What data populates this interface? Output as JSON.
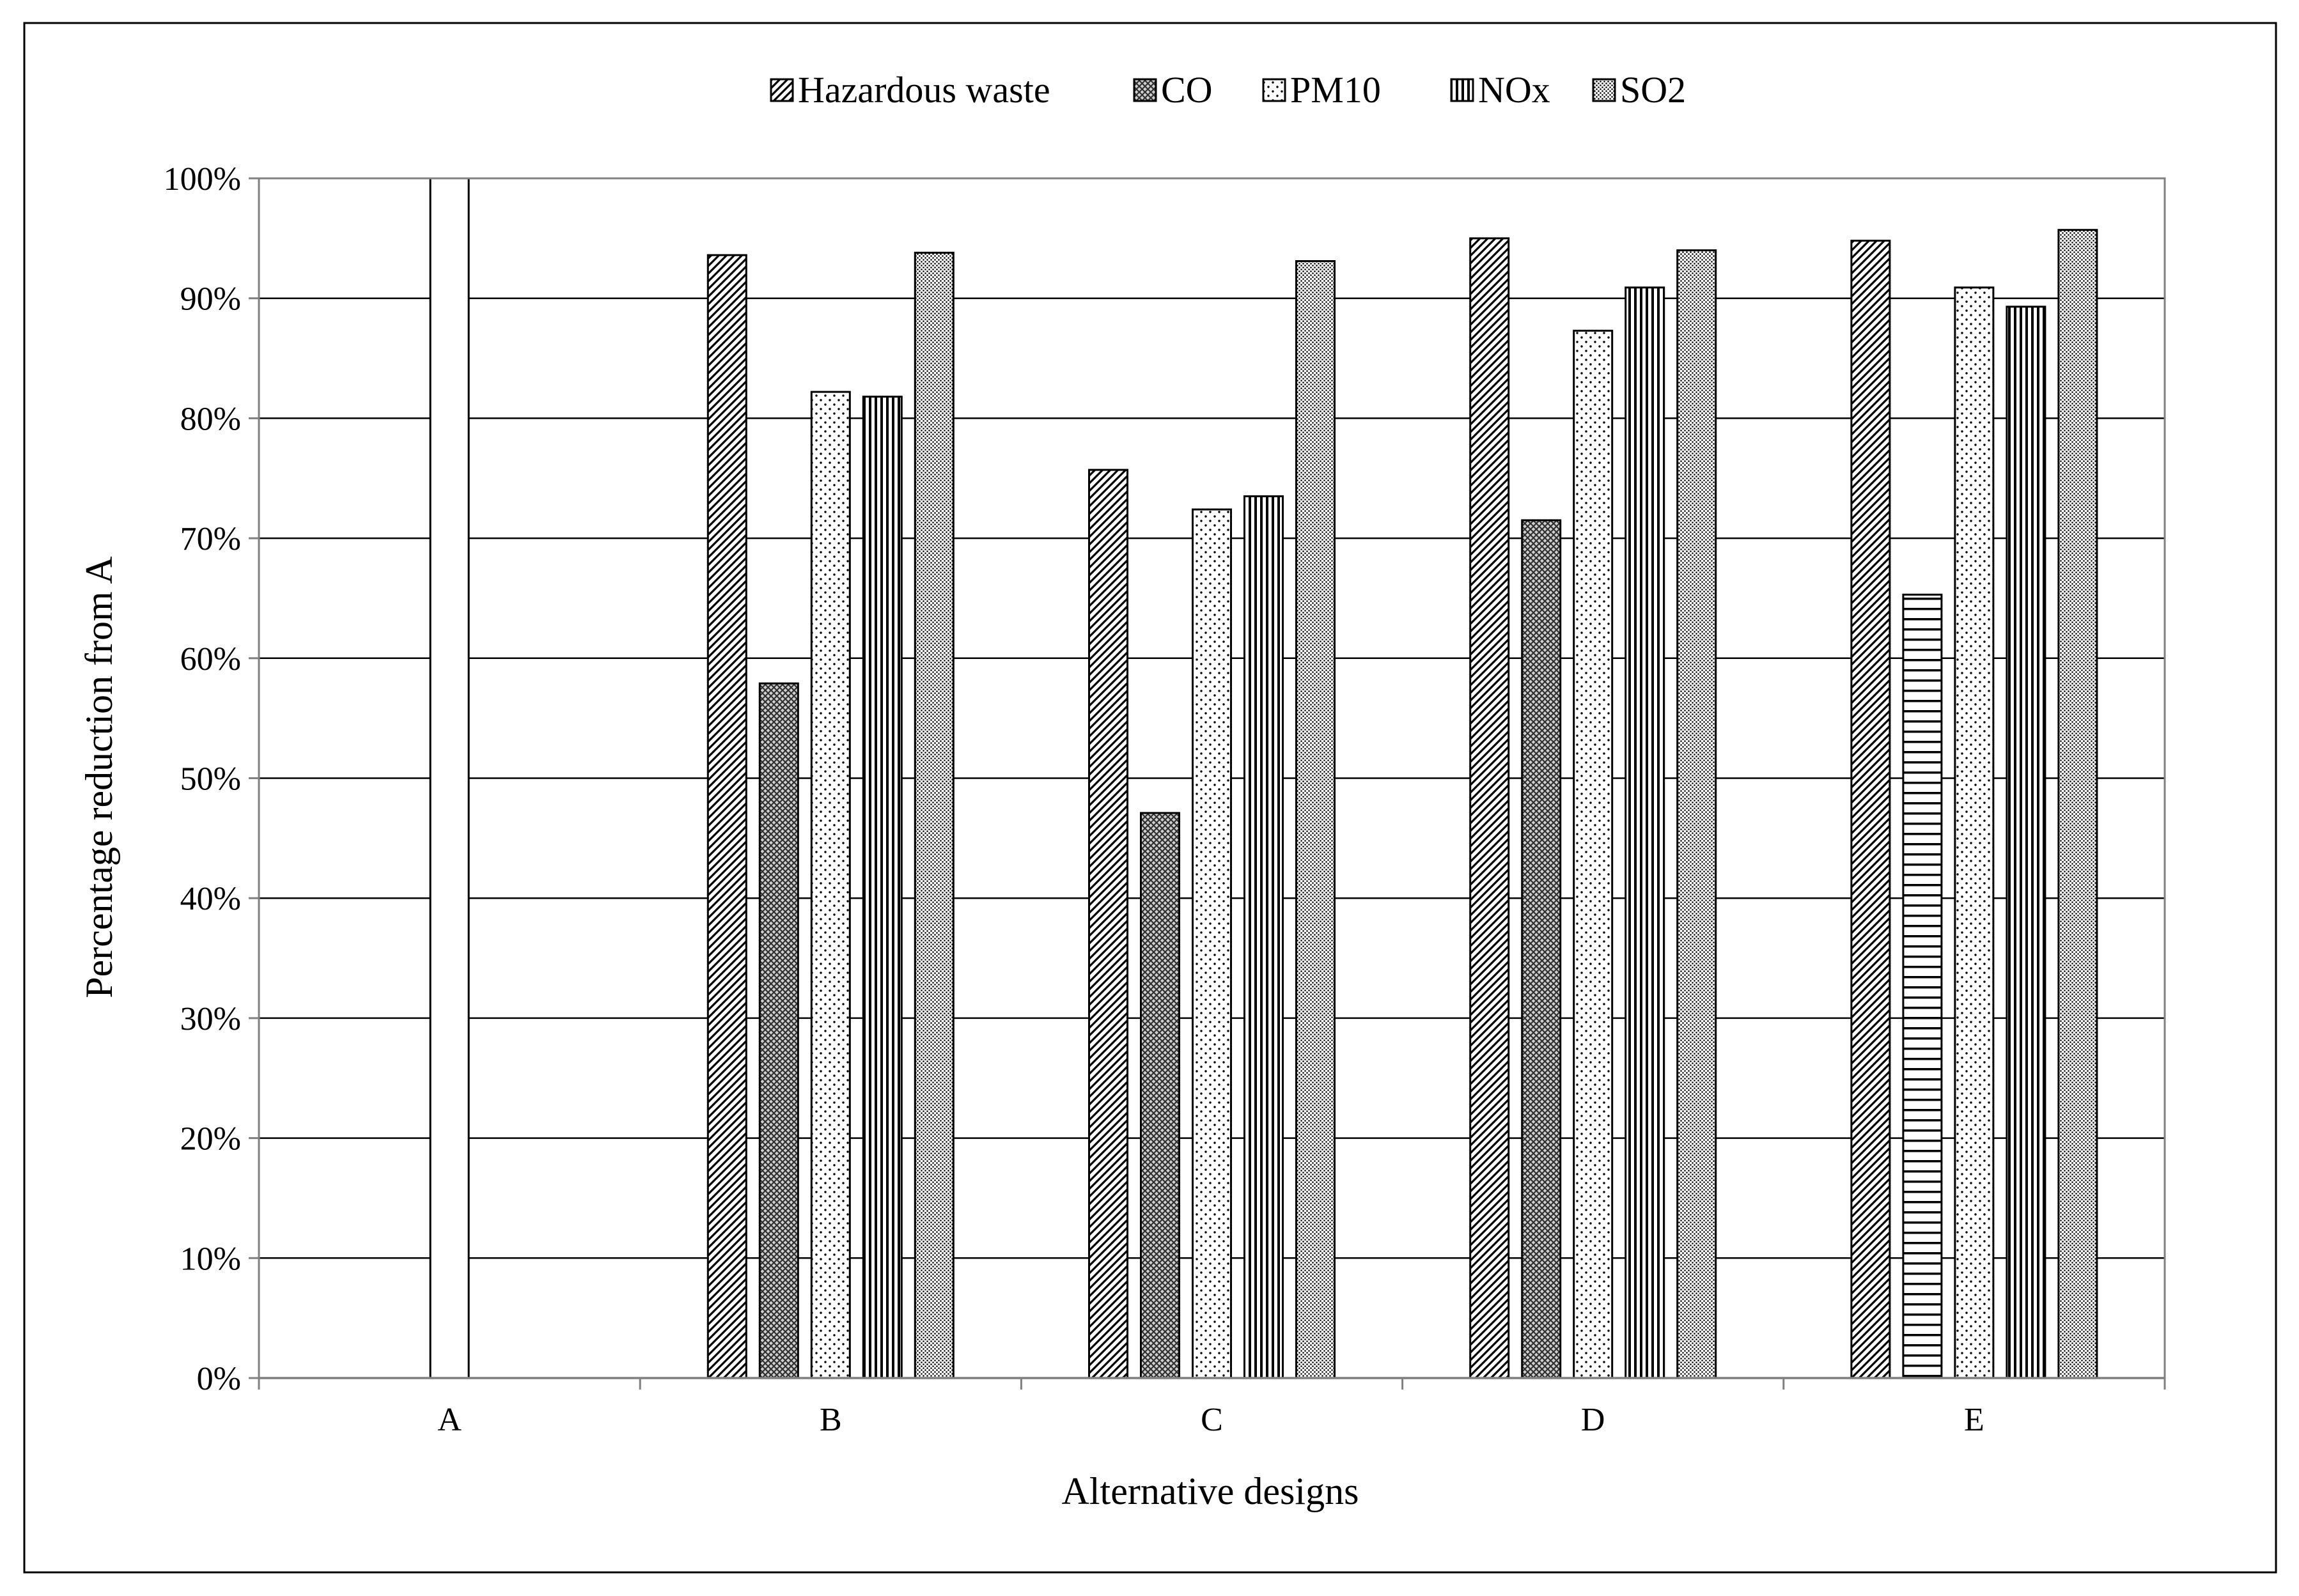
{
  "chart_data": {
    "type": "bar",
    "title": "",
    "xlabel": "Alternative designs",
    "ylabel": "Percentage reduction from A",
    "categories": [
      "A",
      "B",
      "C",
      "D",
      "E"
    ],
    "ylim": [
      0,
      100
    ],
    "yticks": [
      "0%",
      "10%",
      "20%",
      "30%",
      "40%",
      "50%",
      "60%",
      "70%",
      "80%",
      "90%",
      "100%"
    ],
    "grid": true,
    "legend_position": "top",
    "series": [
      {
        "name": "Hazardous waste",
        "pattern": "diagonal",
        "values": [
          null,
          93.6,
          75.7,
          95.0,
          94.8
        ]
      },
      {
        "name": "CO",
        "pattern": "crosshatch-dark",
        "values": [
          null,
          57.9,
          47.1,
          71.5,
          65.3
        ]
      },
      {
        "name": "PM10",
        "pattern": "sparse-dots",
        "values": [
          100,
          82.2,
          72.4,
          87.3,
          90.9
        ]
      },
      {
        "name": "NOx",
        "pattern": "vertical",
        "values": [
          null,
          81.8,
          73.5,
          90.9,
          89.3
        ]
      },
      {
        "name": "SO2",
        "pattern": "dense-dots",
        "values": [
          null,
          93.8,
          93.1,
          94.0,
          95.7
        ]
      }
    ],
    "bar_patterns": [
      {
        "category": "A",
        "series": "PM10",
        "pattern": "none"
      },
      {
        "category": "E",
        "series": "CO",
        "pattern": "horizontal"
      }
    ]
  },
  "colors": {
    "axis": "#808080",
    "grid": "#000000",
    "bar_stroke": "#000000"
  }
}
